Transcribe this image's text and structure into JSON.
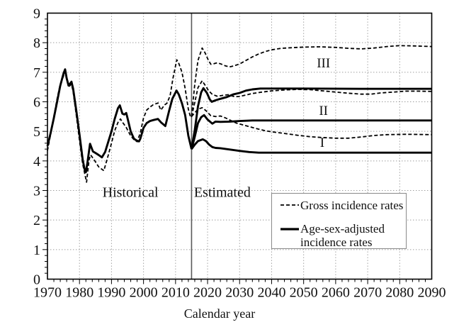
{
  "chart_data": {
    "type": "line",
    "title": "",
    "xlabel": "Calendar year",
    "ylabel": "",
    "xlim": [
      1970,
      2090
    ],
    "ylim": [
      0,
      9
    ],
    "x_ticks": [
      1970,
      1980,
      1990,
      2000,
      2010,
      2020,
      2030,
      2040,
      2050,
      2060,
      2070,
      2080,
      2090
    ],
    "y_ticks": [
      0,
      1,
      2,
      3,
      4,
      5,
      6,
      7,
      8,
      9
    ],
    "x_minor_tick_step": 2,
    "y_minor_tick_step": 0.2,
    "grid": "dotted gray at major ticks",
    "divider_x": 2015,
    "colors": {
      "line": "#000000",
      "grid": "#9a9a9a",
      "divider": "#5a5a5a",
      "frame": "#000000"
    },
    "legend": {
      "position": "bottom-right",
      "gross_label": "Gross incidence rates",
      "adjusted_label_line1": "Age-sex-adjusted",
      "adjusted_label_line2": "incidence rates"
    },
    "annotations": [
      {
        "key": "historical",
        "text": "Historical",
        "x": 1995.9,
        "y": 2.92
      },
      {
        "key": "estimated",
        "text": "Estimated",
        "x": 2024.6,
        "y": 2.92
      },
      {
        "key": "scenario-iii",
        "text": "III",
        "x": 2056.2,
        "y": 7.28
      },
      {
        "key": "scenario-ii",
        "text": "II",
        "x": 2056.2,
        "y": 5.68
      },
      {
        "key": "scenario-i",
        "text": "I",
        "x": 2055.8,
        "y": 4.6
      }
    ],
    "series": [
      {
        "id": "historical-gross",
        "name": "Historical gross incidence rate",
        "style": "dashed",
        "points": [
          [
            1970,
            4.35
          ],
          [
            1971,
            4.9
          ],
          [
            1972,
            5.5
          ],
          [
            1973,
            6.1
          ],
          [
            1974,
            6.6
          ],
          [
            1975.5,
            7.0
          ],
          [
            1976.6,
            6.5
          ],
          [
            1977.5,
            6.6
          ],
          [
            1978,
            6.35
          ],
          [
            1979,
            5.55
          ],
          [
            1980,
            4.7
          ],
          [
            1981,
            3.9
          ],
          [
            1982.2,
            3.28
          ],
          [
            1983,
            4.05
          ],
          [
            1983.5,
            4.2
          ],
          [
            1984.5,
            4.05
          ],
          [
            1986,
            3.8
          ],
          [
            1987.6,
            3.67
          ],
          [
            1989,
            4.2
          ],
          [
            1990,
            4.6
          ],
          [
            1991,
            5.02
          ],
          [
            1992,
            5.3
          ],
          [
            1992.8,
            5.42
          ],
          [
            1993.5,
            5.3
          ],
          [
            1994.5,
            5.15
          ],
          [
            1996,
            4.85
          ],
          [
            1997,
            4.72
          ],
          [
            1998,
            4.65
          ],
          [
            1999,
            4.95
          ],
          [
            2000,
            5.45
          ],
          [
            2001,
            5.72
          ],
          [
            2002,
            5.82
          ],
          [
            2003,
            5.9
          ],
          [
            2004.5,
            5.96
          ],
          [
            2005.4,
            5.72
          ],
          [
            2006.6,
            5.9
          ],
          [
            2007.3,
            5.95
          ],
          [
            2008.3,
            6.2
          ],
          [
            2009.2,
            6.8
          ],
          [
            2010.4,
            7.42
          ],
          [
            2011,
            7.3
          ],
          [
            2012,
            7.0
          ],
          [
            2013,
            6.45
          ],
          [
            2014,
            5.75
          ],
          [
            2014.7,
            5.47
          ],
          [
            2015,
            5.5
          ]
        ]
      },
      {
        "id": "historical-adjusted",
        "name": "Historical age-sex-adjusted incidence rate",
        "style": "solid",
        "points": [
          [
            1970,
            4.5
          ],
          [
            1971,
            4.95
          ],
          [
            1972,
            5.45
          ],
          [
            1973,
            6.0
          ],
          [
            1974,
            6.55
          ],
          [
            1975,
            6.95
          ],
          [
            1975.5,
            7.1
          ],
          [
            1976,
            6.8
          ],
          [
            1976.6,
            6.55
          ],
          [
            1977.5,
            6.68
          ],
          [
            1978,
            6.45
          ],
          [
            1979,
            5.7
          ],
          [
            1980,
            4.9
          ],
          [
            1981,
            4.05
          ],
          [
            1981.6,
            3.72
          ],
          [
            1982,
            3.62
          ],
          [
            1982.5,
            3.95
          ],
          [
            1983.3,
            4.58
          ],
          [
            1984.2,
            4.32
          ],
          [
            1985,
            4.27
          ],
          [
            1986,
            4.2
          ],
          [
            1987,
            4.12
          ],
          [
            1988,
            4.3
          ],
          [
            1989,
            4.65
          ],
          [
            1990,
            5.0
          ],
          [
            1991,
            5.42
          ],
          [
            1992,
            5.78
          ],
          [
            1992.6,
            5.88
          ],
          [
            1993.4,
            5.6
          ],
          [
            1994,
            5.57
          ],
          [
            1994.6,
            5.62
          ],
          [
            1995,
            5.45
          ],
          [
            1996,
            5.0
          ],
          [
            1997,
            4.75
          ],
          [
            1998,
            4.68
          ],
          [
            1998.6,
            4.66
          ],
          [
            1999,
            4.75
          ],
          [
            2000,
            5.12
          ],
          [
            2001,
            5.28
          ],
          [
            2002,
            5.35
          ],
          [
            2003,
            5.38
          ],
          [
            2004.5,
            5.42
          ],
          [
            2005.5,
            5.3
          ],
          [
            2006.8,
            5.18
          ],
          [
            2008,
            5.7
          ],
          [
            2009,
            6.1
          ],
          [
            2010.3,
            6.38
          ],
          [
            2011,
            6.25
          ],
          [
            2012,
            5.95
          ],
          [
            2013,
            5.55
          ],
          [
            2014,
            4.85
          ],
          [
            2015,
            4.4
          ]
        ]
      },
      {
        "id": "estimated-gross-iii",
        "name": "Estimated gross incidence rate, scenario III",
        "style": "dashed",
        "points": [
          [
            2015,
            5.5
          ],
          [
            2016,
            6.6
          ],
          [
            2017,
            7.4
          ],
          [
            2018.3,
            7.82
          ],
          [
            2019.2,
            7.66
          ],
          [
            2020.2,
            7.42
          ],
          [
            2021,
            7.27
          ],
          [
            2022,
            7.29
          ],
          [
            2023,
            7.32
          ],
          [
            2024.2,
            7.28
          ],
          [
            2025.5,
            7.22
          ],
          [
            2026.8,
            7.18
          ],
          [
            2028,
            7.21
          ],
          [
            2030,
            7.28
          ],
          [
            2032,
            7.4
          ],
          [
            2034,
            7.52
          ],
          [
            2036,
            7.62
          ],
          [
            2038,
            7.7
          ],
          [
            2040,
            7.76
          ],
          [
            2043,
            7.81
          ],
          [
            2046,
            7.83
          ],
          [
            2050,
            7.85
          ],
          [
            2055,
            7.86
          ],
          [
            2060,
            7.84
          ],
          [
            2064,
            7.81
          ],
          [
            2068,
            7.79
          ],
          [
            2072,
            7.82
          ],
          [
            2076,
            7.87
          ],
          [
            2080,
            7.9
          ],
          [
            2085,
            7.89
          ],
          [
            2090,
            7.87
          ]
        ]
      },
      {
        "id": "estimated-gross-ii",
        "name": "Estimated gross incidence rate, scenario II",
        "style": "dashed",
        "points": [
          [
            2015,
            5.5
          ],
          [
            2016,
            5.98
          ],
          [
            2017,
            6.48
          ],
          [
            2018.3,
            6.71
          ],
          [
            2019.3,
            6.55
          ],
          [
            2020.3,
            6.38
          ],
          [
            2021.5,
            6.25
          ],
          [
            2023,
            6.19
          ],
          [
            2025,
            6.22
          ],
          [
            2026.5,
            6.24
          ],
          [
            2028.5,
            6.17
          ],
          [
            2030,
            6.18
          ],
          [
            2032,
            6.23
          ],
          [
            2034,
            6.28
          ],
          [
            2037,
            6.33
          ],
          [
            2040,
            6.37
          ],
          [
            2044,
            6.4
          ],
          [
            2048,
            6.42
          ],
          [
            2052,
            6.41
          ],
          [
            2056,
            6.37
          ],
          [
            2060,
            6.33
          ],
          [
            2064,
            6.29
          ],
          [
            2068,
            6.26
          ],
          [
            2071,
            6.26
          ],
          [
            2074,
            6.3
          ],
          [
            2078,
            6.33
          ],
          [
            2082,
            6.36
          ],
          [
            2086,
            6.36
          ],
          [
            2090,
            6.35
          ]
        ]
      },
      {
        "id": "estimated-gross-i",
        "name": "Estimated gross incidence rate, scenario I",
        "style": "dashed",
        "points": [
          [
            2015,
            5.5
          ],
          [
            2016,
            5.63
          ],
          [
            2017,
            5.75
          ],
          [
            2018.3,
            5.8
          ],
          [
            2019.5,
            5.7
          ],
          [
            2021,
            5.53
          ],
          [
            2022.5,
            5.5
          ],
          [
            2024,
            5.52
          ],
          [
            2025.5,
            5.46
          ],
          [
            2027,
            5.38
          ],
          [
            2029,
            5.28
          ],
          [
            2031,
            5.22
          ],
          [
            2033,
            5.16
          ],
          [
            2035,
            5.1
          ],
          [
            2038,
            5.02
          ],
          [
            2041,
            4.97
          ],
          [
            2044,
            4.93
          ],
          [
            2048,
            4.87
          ],
          [
            2052,
            4.82
          ],
          [
            2056,
            4.79
          ],
          [
            2060,
            4.77
          ],
          [
            2064,
            4.77
          ],
          [
            2068,
            4.81
          ],
          [
            2072,
            4.86
          ],
          [
            2076,
            4.89
          ],
          [
            2082,
            4.9
          ],
          [
            2090,
            4.89
          ]
        ]
      },
      {
        "id": "estimated-adjusted-iii",
        "name": "Estimated age-sex-adjusted incidence rate, scenario III",
        "style": "solid",
        "points": [
          [
            2015,
            4.4
          ],
          [
            2016,
            5.05
          ],
          [
            2017,
            5.85
          ],
          [
            2018,
            6.32
          ],
          [
            2018.7,
            6.46
          ],
          [
            2019.8,
            6.3
          ],
          [
            2020.7,
            6.08
          ],
          [
            2021.3,
            6.0
          ],
          [
            2022.5,
            6.05
          ],
          [
            2024,
            6.1
          ],
          [
            2026,
            6.16
          ],
          [
            2028,
            6.25
          ],
          [
            2030,
            6.3
          ],
          [
            2032,
            6.38
          ],
          [
            2034,
            6.42
          ],
          [
            2036.5,
            6.45
          ],
          [
            2050,
            6.45
          ],
          [
            2070,
            6.44
          ],
          [
            2090,
            6.44
          ]
        ]
      },
      {
        "id": "estimated-adjusted-ii",
        "name": "Estimated age-sex-adjusted incidence rate, scenario II",
        "style": "solid",
        "points": [
          [
            2015,
            4.4
          ],
          [
            2016,
            4.82
          ],
          [
            2017,
            5.28
          ],
          [
            2018,
            5.48
          ],
          [
            2018.9,
            5.55
          ],
          [
            2020,
            5.4
          ],
          [
            2021.5,
            5.26
          ],
          [
            2022.5,
            5.33
          ],
          [
            2024,
            5.32
          ],
          [
            2027,
            5.33
          ],
          [
            2030,
            5.35
          ],
          [
            2034,
            5.37
          ],
          [
            2060,
            5.37
          ],
          [
            2090,
            5.37
          ]
        ]
      },
      {
        "id": "estimated-adjusted-i",
        "name": "Estimated age-sex-adjusted incidence rate, scenario I",
        "style": "solid",
        "points": [
          [
            2015,
            4.4
          ],
          [
            2016,
            4.55
          ],
          [
            2017,
            4.67
          ],
          [
            2018.5,
            4.73
          ],
          [
            2019.5,
            4.67
          ],
          [
            2020.5,
            4.55
          ],
          [
            2021.5,
            4.47
          ],
          [
            2022.5,
            4.44
          ],
          [
            2024,
            4.43
          ],
          [
            2026,
            4.4
          ],
          [
            2028,
            4.37
          ],
          [
            2030,
            4.34
          ],
          [
            2033,
            4.3
          ],
          [
            2036,
            4.28
          ],
          [
            2060,
            4.28
          ],
          [
            2090,
            4.28
          ]
        ]
      }
    ]
  }
}
